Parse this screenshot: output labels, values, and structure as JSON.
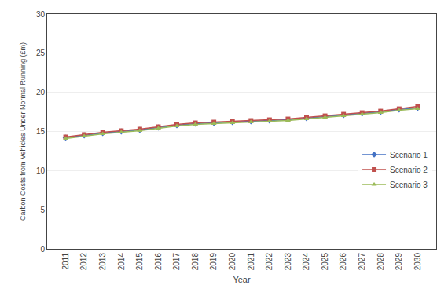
{
  "chart_data": {
    "type": "line",
    "x": [
      2011,
      2012,
      2013,
      2014,
      2015,
      2016,
      2017,
      2018,
      2019,
      2020,
      2021,
      2022,
      2023,
      2024,
      2025,
      2026,
      2027,
      2028,
      2029,
      2030
    ],
    "series": [
      {
        "name": "Scenario 1",
        "color": "#4472C4",
        "marker": "diamond",
        "values": [
          14.2,
          14.5,
          14.8,
          15.0,
          15.2,
          15.5,
          15.8,
          16.0,
          16.1,
          16.2,
          16.3,
          16.4,
          16.5,
          16.7,
          16.9,
          17.1,
          17.3,
          17.5,
          17.8,
          18.0
        ]
      },
      {
        "name": "Scenario 2",
        "color": "#C0504D",
        "marker": "square",
        "values": [
          14.3,
          14.6,
          14.9,
          15.1,
          15.3,
          15.6,
          15.9,
          16.1,
          16.2,
          16.3,
          16.4,
          16.5,
          16.6,
          16.8,
          17.0,
          17.2,
          17.4,
          17.6,
          17.9,
          18.2
        ]
      },
      {
        "name": "Scenario 3",
        "color": "#9BBB59",
        "marker": "triangle-up",
        "values": [
          14.1,
          14.4,
          14.7,
          14.9,
          15.1,
          15.4,
          15.7,
          15.9,
          16.0,
          16.1,
          16.2,
          16.3,
          16.4,
          16.6,
          16.8,
          17.0,
          17.2,
          17.4,
          17.7,
          17.9
        ]
      }
    ],
    "xlabel": "Year",
    "ylabel": "Carbon Costs from Vehicles Under Normal Running (£m)",
    "xlim": [
      2010,
      2031
    ],
    "xticks": [
      2011,
      2012,
      2013,
      2014,
      2015,
      2016,
      2017,
      2018,
      2019,
      2020,
      2021,
      2022,
      2023,
      2024,
      2025,
      2026,
      2027,
      2028,
      2029,
      2030
    ],
    "ylim": [
      0,
      30
    ],
    "yticks": [
      0,
      5,
      10,
      15,
      20,
      25,
      30
    ],
    "grid": "y",
    "legend": "right"
  }
}
